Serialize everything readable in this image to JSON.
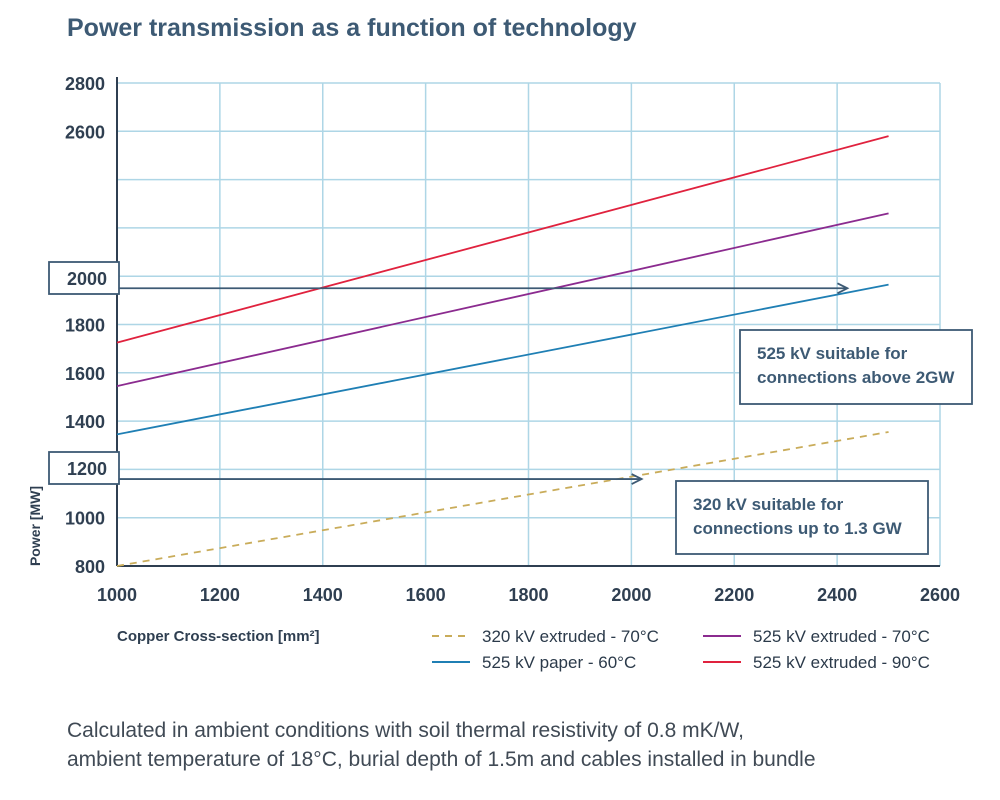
{
  "chart_data": {
    "type": "line",
    "title": "Power transmission as a function of technology",
    "xlabel": "Copper Cross-section [mm²]",
    "ylabel": "Power [MW]",
    "xlim": [
      1000,
      2600
    ],
    "ylim": [
      800,
      2800
    ],
    "x_ticks": [
      1000,
      1200,
      1400,
      1600,
      1800,
      2000,
      2200,
      2400,
      2600
    ],
    "y_ticks": [
      800,
      1000,
      1200,
      1400,
      1600,
      1800,
      2000,
      2600,
      2800
    ],
    "grid": true,
    "legend_position": "bottom",
    "series": [
      {
        "name": "320 kV extruded - 70°C",
        "color": "#c9ac5a",
        "dashed": true,
        "x": [
          1000,
          2500
        ],
        "y": [
          800,
          1355
        ]
      },
      {
        "name": "525 kV paper - 60°C",
        "color": "#1f7fb4",
        "dashed": false,
        "x": [
          1000,
          2500
        ],
        "y": [
          1345,
          1965
        ]
      },
      {
        "name": "525 kV extruded - 70°C",
        "color": "#8b2b8f",
        "dashed": false,
        "x": [
          1000,
          2500
        ],
        "y": [
          1545,
          2260
        ]
      },
      {
        "name": "525 kV extruded - 90°C",
        "color": "#e0223e",
        "dashed": false,
        "x": [
          1000,
          2500
        ],
        "y": [
          1725,
          2580
        ]
      }
    ],
    "annotations": [
      {
        "y_label": "2000",
        "y": 1950,
        "x_end": 2420,
        "text": "525 kV suitable for connections above 2GW"
      },
      {
        "y_label": "1200",
        "y": 1160,
        "x_end": 2020,
        "text": "320 kV suitable for connections up to 1.3 GW"
      }
    ]
  },
  "caption": {
    "line1": "Calculated in ambient conditions with soil thermal resistivity of 0.8 mK/W,",
    "line2": "ambient temperature of 18°C, burial depth of 1.5m and cables installed in bundle"
  },
  "colors": {
    "grid": "#aed6e6",
    "axis": "#2f3f51",
    "arrow": "#3d5a74",
    "title": "#3d5a74"
  }
}
